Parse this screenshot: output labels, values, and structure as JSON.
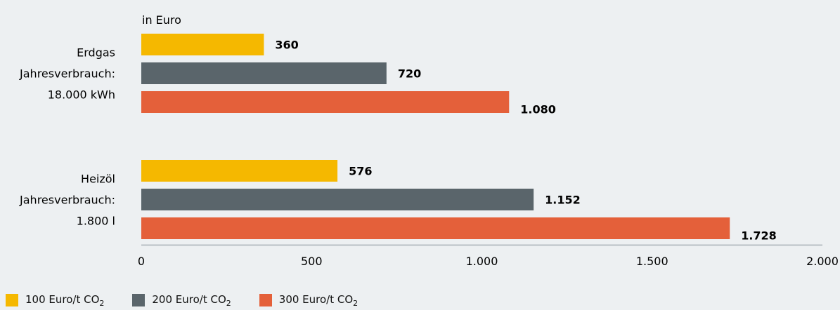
{
  "chart_data": {
    "type": "bar",
    "orientation": "horizontal",
    "unit_label": "in Euro",
    "categories": [
      {
        "lines": [
          "Erdgas",
          "Jahresverbrauch:",
          "18.000 kWh"
        ]
      },
      {
        "lines": [
          "Heizöl",
          "Jahresverbrauch:",
          "1.800 l"
        ]
      }
    ],
    "series": [
      {
        "name": "100 Euro/t CO",
        "name_sub": "2",
        "color": "#f5b800",
        "values": [
          360,
          576
        ],
        "labels": [
          "360",
          "576"
        ]
      },
      {
        "name": "200 Euro/t CO",
        "name_sub": "2",
        "color": "#5a656b",
        "values": [
          720,
          1152
        ],
        "labels": [
          "720",
          "1.152"
        ]
      },
      {
        "name": "300 Euro/t CO",
        "name_sub": "2",
        "color": "#e4603a",
        "values": [
          1080,
          1728
        ],
        "labels": [
          "1.080",
          "1.728"
        ]
      }
    ],
    "xlim": [
      0,
      2000
    ],
    "ticks": [
      {
        "value": 0,
        "label": "0"
      },
      {
        "value": 500,
        "label": "500"
      },
      {
        "value": 1000,
        "label": "1.000"
      },
      {
        "value": 1500,
        "label": "1.500"
      },
      {
        "value": 2000,
        "label": "2.000"
      }
    ],
    "grid": false,
    "legend_position": "bottom-left"
  }
}
